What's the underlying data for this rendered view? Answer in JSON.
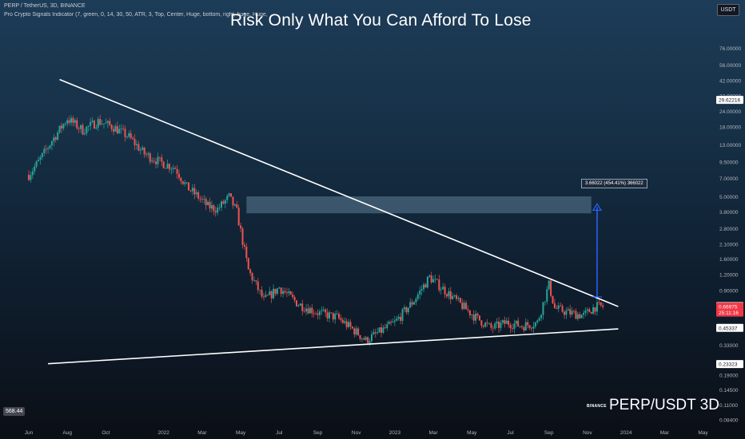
{
  "header": {
    "symbol_line": "PERP / TetherUS, 3D, BINANCE",
    "indicator_line": "Pro Crypto Signals Indicator (7, green, 0, 14, 30, 50, ATR, 3, Top, Center, Huge, bottom, right, huge, Huge, Swap",
    "title": "Risk Only What You Can Afford To Lose",
    "quote_currency": "USDT"
  },
  "footer": {
    "counter": "568.44",
    "brand": "BINANCE",
    "pair_label": "PERP/USDT 3D"
  },
  "measure": {
    "label": "3.66022 (454.41%) 366022"
  },
  "colors": {
    "up": "#26a69a",
    "down": "#ef5350",
    "trendline": "#ffffff",
    "arrow": "#2962ff",
    "zone": "#5d7d96"
  },
  "chart_data": {
    "type": "candlestick",
    "y_scale": "log",
    "ylim": [
      0.0792,
      130
    ],
    "y_ticks": [
      "76.00000",
      "56.00000",
      "42.00000",
      "32.00000",
      "24.00000",
      "18.00000",
      "13.00000",
      "9.50000",
      "7.00000",
      "5.00000",
      "3.80000",
      "2.80000",
      "2.10000",
      "1.60000",
      "1.20000",
      "0.90000",
      "0.33000",
      "0.19000",
      "0.14500",
      "0.11000",
      "0.08400"
    ],
    "y_tick_values": [
      76,
      56,
      42,
      32,
      24,
      18,
      13,
      9.5,
      7,
      5,
      3.8,
      2.8,
      2.1,
      1.6,
      1.2,
      0.9,
      0.33,
      0.19,
      0.145,
      0.11,
      0.084
    ],
    "price_labels": [
      {
        "text": "29.62216",
        "value": 29.62216,
        "style": "white"
      },
      {
        "text": "0.67545",
        "value": 0.67545,
        "style": "white"
      },
      {
        "text": "0.66975",
        "value": 0.66975,
        "style": "red"
      },
      {
        "text": "25:11:16",
        "value": 0.6,
        "style": "red"
      },
      {
        "text": "0.45337",
        "value": 0.45337,
        "style": "white"
      },
      {
        "text": "0.23323",
        "value": 0.23323,
        "style": "white"
      }
    ],
    "x_ticks": [
      "Jun",
      "Aug",
      "Oct",
      "2022",
      "Mar",
      "May",
      "Jul",
      "Sep",
      "Nov",
      "2023",
      "Mar",
      "May",
      "Jul",
      "Sep",
      "Nov",
      "2024",
      "Mar",
      "May"
    ],
    "x_tick_months": [
      0,
      2,
      4,
      7,
      9,
      11,
      13,
      15,
      17,
      19,
      21,
      23,
      25,
      27,
      29,
      31,
      33,
      35
    ],
    "x_start": "2021-06",
    "candles_path_months": [
      0,
      0.6,
      1.2,
      2.0,
      2.8,
      3.6,
      4.4,
      5.2,
      6.0,
      6.8,
      7.6,
      8.2,
      8.8,
      9.3,
      9.8,
      10.4,
      10.8,
      11.4,
      12.2,
      13.0,
      14.0,
      15.0,
      16.0,
      17.0,
      17.5,
      18.2,
      19.0,
      20.0,
      20.8,
      21.6,
      22.4,
      23.2,
      24.0,
      24.8,
      25.6,
      26.4,
      27.0,
      27.3,
      28.0,
      28.8,
      29.4,
      29.9
    ],
    "candles_path_prices": [
      7.5,
      10,
      14,
      21,
      17,
      20,
      18,
      15,
      11,
      9.5,
      8.5,
      6,
      5,
      4.2,
      4,
      5,
      3.8,
      1.3,
      0.75,
      0.95,
      0.7,
      0.6,
      0.55,
      0.42,
      0.36,
      0.42,
      0.5,
      0.75,
      1.15,
      0.9,
      0.7,
      0.55,
      0.45,
      0.5,
      0.47,
      0.5,
      1.0,
      0.65,
      0.6,
      0.57,
      0.67,
      0.67
    ],
    "trendlines": [
      {
        "name": "upper",
        "from": {
          "month": 1.6,
          "price": 43
        },
        "to": {
          "month": 30.6,
          "price": 0.67
        }
      },
      {
        "name": "lower",
        "from": {
          "month": 1.0,
          "price": 0.235
        },
        "to": {
          "month": 30.6,
          "price": 0.445
        }
      }
    ],
    "zone": {
      "from_month": 11.3,
      "to_month": 29.2,
      "price_low": 3.7,
      "price_high": 5.05
    },
    "arrow": {
      "month": 29.5,
      "price_from": 0.8,
      "price_to": 4.4
    }
  }
}
